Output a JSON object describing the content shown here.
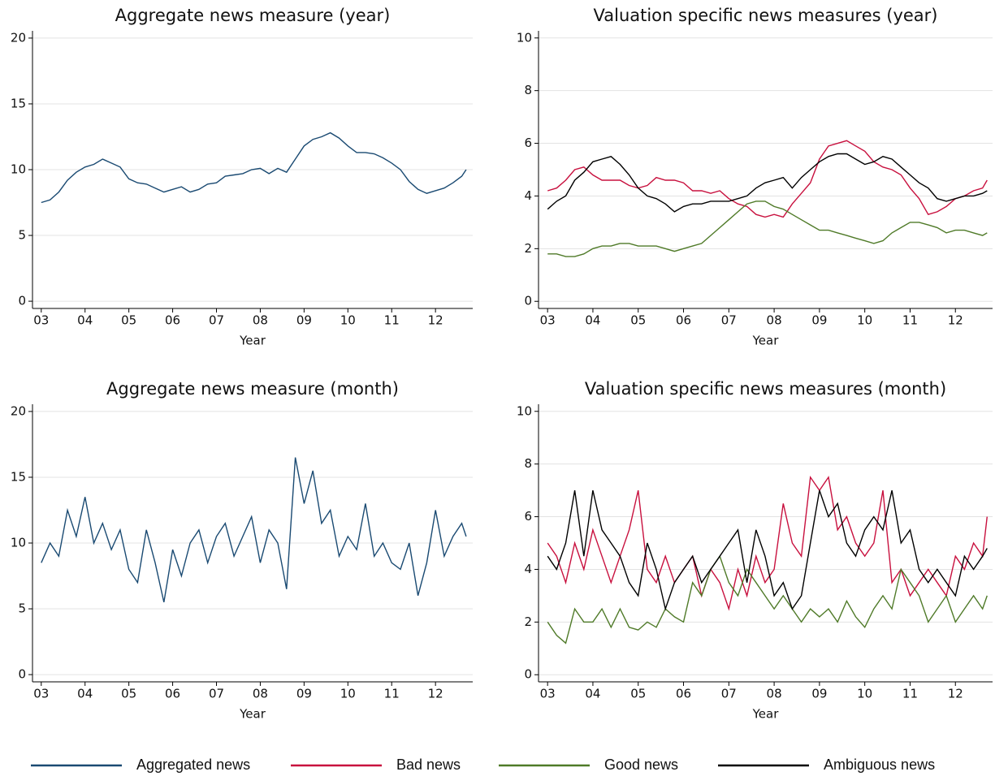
{
  "chart_data": [
    {
      "type": "line",
      "title": "Aggregate news measure (year)",
      "x_label": "Year",
      "x": [
        3.0,
        3.2,
        3.4,
        3.6,
        3.8,
        4.0,
        4.2,
        4.4,
        4.6,
        4.8,
        5.0,
        5.2,
        5.4,
        5.6,
        5.8,
        6.0,
        6.2,
        6.4,
        6.6,
        6.8,
        7.0,
        7.2,
        7.4,
        7.6,
        7.8,
        8.0,
        8.2,
        8.4,
        8.6,
        8.8,
        9.0,
        9.2,
        9.4,
        9.6,
        9.8,
        10.0,
        10.2,
        10.4,
        10.6,
        10.8,
        11.0,
        11.2,
        11.4,
        11.6,
        11.8,
        12.0,
        12.2,
        12.4,
        12.6,
        12.7
      ],
      "series": [
        {
          "name": "Aggregated news",
          "color": "#1a4a72",
          "values": [
            7.5,
            7.7,
            8.3,
            9.2,
            9.8,
            10.2,
            10.4,
            10.8,
            10.5,
            10.2,
            9.3,
            9.0,
            8.9,
            8.6,
            8.3,
            8.5,
            8.7,
            8.3,
            8.5,
            8.9,
            9.0,
            9.5,
            9.6,
            9.7,
            10.0,
            10.1,
            9.7,
            10.1,
            9.8,
            10.8,
            11.8,
            12.3,
            12.5,
            12.8,
            12.4,
            11.8,
            11.3,
            11.3,
            11.2,
            10.9,
            10.5,
            10.0,
            9.1,
            8.5,
            8.2,
            8.4,
            8.6,
            9.0,
            9.5,
            10.0
          ]
        }
      ],
      "xlim": [
        2.8,
        12.85
      ],
      "xticks": [
        {
          "value": 3,
          "label": "03"
        },
        {
          "value": 4,
          "label": "04"
        },
        {
          "value": 5,
          "label": "05"
        },
        {
          "value": 6,
          "label": "06"
        },
        {
          "value": 7,
          "label": "07"
        },
        {
          "value": 8,
          "label": "08"
        },
        {
          "value": 9,
          "label": "09"
        },
        10,
        11,
        12
      ],
      "ylim": [
        -0.55,
        20.55
      ],
      "yticks": [
        0,
        5,
        10,
        15,
        20
      ],
      "grid": true
    },
    {
      "type": "line",
      "title": "Valuation specific news measures (year)",
      "x_label": "Year",
      "x": [
        3.0,
        3.2,
        3.4,
        3.6,
        3.8,
        4.0,
        4.2,
        4.4,
        4.6,
        4.8,
        5.0,
        5.2,
        5.4,
        5.6,
        5.8,
        6.0,
        6.2,
        6.4,
        6.6,
        6.8,
        7.0,
        7.2,
        7.4,
        7.6,
        7.8,
        8.0,
        8.2,
        8.4,
        8.6,
        8.8,
        9.0,
        9.2,
        9.4,
        9.6,
        9.8,
        10.0,
        10.2,
        10.4,
        10.6,
        10.8,
        11.0,
        11.2,
        11.4,
        11.6,
        11.8,
        12.0,
        12.2,
        12.4,
        12.6,
        12.7
      ],
      "series": [
        {
          "name": "Bad news",
          "color": "#c8103e",
          "values": [
            4.2,
            4.3,
            4.6,
            5.0,
            5.1,
            4.8,
            4.6,
            4.6,
            4.6,
            4.4,
            4.3,
            4.4,
            4.7,
            4.6,
            4.6,
            4.5,
            4.2,
            4.2,
            4.1,
            4.2,
            3.9,
            3.7,
            3.6,
            3.3,
            3.2,
            3.3,
            3.2,
            3.7,
            4.1,
            4.5,
            5.4,
            5.9,
            6.0,
            6.1,
            5.9,
            5.7,
            5.3,
            5.1,
            5.0,
            4.8,
            4.3,
            3.9,
            3.3,
            3.4,
            3.6,
            3.9,
            4.0,
            4.2,
            4.3,
            4.6
          ]
        },
        {
          "name": "Good news",
          "color": "#4f7a28",
          "values": [
            1.8,
            1.8,
            1.7,
            1.7,
            1.8,
            2.0,
            2.1,
            2.1,
            2.2,
            2.2,
            2.1,
            2.1,
            2.1,
            2.0,
            1.9,
            2.0,
            2.1,
            2.2,
            2.5,
            2.8,
            3.1,
            3.4,
            3.7,
            3.8,
            3.8,
            3.6,
            3.5,
            3.3,
            3.1,
            2.9,
            2.7,
            2.7,
            2.6,
            2.5,
            2.4,
            2.3,
            2.2,
            2.3,
            2.6,
            2.8,
            3.0,
            3.0,
            2.9,
            2.8,
            2.6,
            2.7,
            2.7,
            2.6,
            2.5,
            2.6
          ]
        },
        {
          "name": "Ambiguous news",
          "color": "#000000",
          "values": [
            3.5,
            3.8,
            4.0,
            4.6,
            4.9,
            5.3,
            5.4,
            5.5,
            5.2,
            4.8,
            4.3,
            4.0,
            3.9,
            3.7,
            3.4,
            3.6,
            3.7,
            3.7,
            3.8,
            3.8,
            3.8,
            3.9,
            4.0,
            4.3,
            4.5,
            4.6,
            4.7,
            4.3,
            4.7,
            5.0,
            5.3,
            5.5,
            5.6,
            5.6,
            5.4,
            5.2,
            5.3,
            5.5,
            5.4,
            5.1,
            4.8,
            4.5,
            4.3,
            3.9,
            3.8,
            3.9,
            4.0,
            4.0,
            4.1,
            4.2
          ]
        }
      ],
      "xlim": [
        2.8,
        12.82
      ],
      "xticks": [
        {
          "value": 3,
          "label": "03"
        },
        {
          "value": 4,
          "label": "04"
        },
        {
          "value": 5,
          "label": "05"
        },
        {
          "value": 6,
          "label": "06"
        },
        {
          "value": 7,
          "label": "07"
        },
        {
          "value": 8,
          "label": "08"
        },
        {
          "value": 9,
          "label": "09"
        },
        10,
        11,
        12
      ],
      "ylim": [
        -0.27,
        10.27
      ],
      "yticks": [
        0,
        2,
        4,
        6,
        8,
        10
      ],
      "grid": true
    },
    {
      "type": "line",
      "title": "Aggregate news measure (month)",
      "x_label": "Year",
      "x": [
        3.0,
        3.2,
        3.4,
        3.6,
        3.8,
        4.0,
        4.2,
        4.4,
        4.6,
        4.8,
        5.0,
        5.2,
        5.4,
        5.6,
        5.8,
        6.0,
        6.2,
        6.4,
        6.6,
        6.8,
        7.0,
        7.2,
        7.4,
        7.6,
        7.8,
        8.0,
        8.2,
        8.4,
        8.6,
        8.8,
        9.0,
        9.2,
        9.4,
        9.6,
        9.8,
        10.0,
        10.2,
        10.4,
        10.6,
        10.8,
        11.0,
        11.2,
        11.4,
        11.6,
        11.8,
        12.0,
        12.2,
        12.4,
        12.6,
        12.7
      ],
      "series": [
        {
          "name": "Aggregated news",
          "color": "#1a4a72",
          "values": [
            8.5,
            10.0,
            9.0,
            12.5,
            10.5,
            13.5,
            10.0,
            11.5,
            9.5,
            11.0,
            8.0,
            7.0,
            11.0,
            8.5,
            5.5,
            9.5,
            7.5,
            10.0,
            11.0,
            8.5,
            10.5,
            11.5,
            9.0,
            10.5,
            12.0,
            8.5,
            11.0,
            10.0,
            6.5,
            16.5,
            13.0,
            15.5,
            11.5,
            12.5,
            9.0,
            10.5,
            9.5,
            13.0,
            9.0,
            10.0,
            8.5,
            8.0,
            10.0,
            6.0,
            8.5,
            12.5,
            9.0,
            10.5,
            11.5,
            10.5
          ]
        }
      ],
      "xlim": [
        2.8,
        12.85
      ],
      "xticks": [
        {
          "value": 3,
          "label": "03"
        },
        {
          "value": 4,
          "label": "04"
        },
        {
          "value": 5,
          "label": "05"
        },
        {
          "value": 6,
          "label": "06"
        },
        {
          "value": 7,
          "label": "07"
        },
        {
          "value": 8,
          "label": "08"
        },
        {
          "value": 9,
          "label": "09"
        },
        10,
        11,
        12
      ],
      "ylim": [
        -0.55,
        20.55
      ],
      "yticks": [
        0,
        5,
        10,
        15,
        20
      ],
      "grid": true
    },
    {
      "type": "line",
      "title": "Valuation specific news measures (month)",
      "x_label": "Year",
      "x": [
        3.0,
        3.2,
        3.4,
        3.6,
        3.8,
        4.0,
        4.2,
        4.4,
        4.6,
        4.8,
        5.0,
        5.2,
        5.4,
        5.6,
        5.8,
        6.0,
        6.2,
        6.4,
        6.6,
        6.8,
        7.0,
        7.2,
        7.4,
        7.6,
        7.8,
        8.0,
        8.2,
        8.4,
        8.6,
        8.8,
        9.0,
        9.2,
        9.4,
        9.6,
        9.8,
        10.0,
        10.2,
        10.4,
        10.6,
        10.8,
        11.0,
        11.2,
        11.4,
        11.6,
        11.8,
        12.0,
        12.2,
        12.4,
        12.6,
        12.7
      ],
      "series": [
        {
          "name": "Bad news",
          "color": "#c8103e",
          "values": [
            5.0,
            4.5,
            3.5,
            5.0,
            4.0,
            5.5,
            4.5,
            3.5,
            4.5,
            5.5,
            7.0,
            4.0,
            3.5,
            4.5,
            3.5,
            4.0,
            4.5,
            3.0,
            4.0,
            3.5,
            2.5,
            4.0,
            3.0,
            4.5,
            3.5,
            4.0,
            6.5,
            5.0,
            4.5,
            7.5,
            7.0,
            7.5,
            5.5,
            6.0,
            5.0,
            4.5,
            5.0,
            7.0,
            3.5,
            4.0,
            3.0,
            3.5,
            4.0,
            3.5,
            3.0,
            4.5,
            4.0,
            5.0,
            4.5,
            6.0
          ]
        },
        {
          "name": "Good news",
          "color": "#4f7a28",
          "values": [
            2.0,
            1.5,
            1.2,
            2.5,
            2.0,
            2.0,
            2.5,
            1.8,
            2.5,
            1.8,
            1.7,
            2.0,
            1.8,
            2.5,
            2.2,
            2.0,
            3.5,
            3.0,
            4.0,
            4.5,
            3.5,
            3.0,
            4.0,
            3.5,
            3.0,
            2.5,
            3.0,
            2.5,
            2.0,
            2.5,
            2.2,
            2.5,
            2.0,
            2.8,
            2.2,
            1.8,
            2.5,
            3.0,
            2.5,
            4.0,
            3.5,
            3.0,
            2.0,
            2.5,
            3.0,
            2.0,
            2.5,
            3.0,
            2.5,
            3.0
          ]
        },
        {
          "name": "Ambiguous news",
          "color": "#000000",
          "values": [
            4.5,
            4.0,
            5.0,
            7.0,
            4.5,
            7.0,
            5.5,
            5.0,
            4.5,
            3.5,
            3.0,
            5.0,
            4.0,
            2.5,
            3.5,
            4.0,
            4.5,
            3.5,
            4.0,
            4.5,
            5.0,
            5.5,
            3.5,
            5.5,
            4.5,
            3.0,
            3.5,
            2.5,
            3.0,
            5.0,
            7.0,
            6.0,
            6.5,
            5.0,
            4.5,
            5.5,
            6.0,
            5.5,
            7.0,
            5.0,
            5.5,
            4.0,
            3.5,
            4.0,
            3.5,
            3.0,
            4.5,
            4.0,
            4.5,
            4.8
          ]
        }
      ],
      "xlim": [
        2.8,
        12.82
      ],
      "xticks": [
        {
          "value": 3,
          "label": "03"
        },
        {
          "value": 4,
          "label": "04"
        },
        {
          "value": 5,
          "label": "05"
        },
        {
          "value": 6,
          "label": "06"
        },
        {
          "value": 7,
          "label": "07"
        },
        {
          "value": 8,
          "label": "08"
        },
        {
          "value": 9,
          "label": "09"
        },
        10,
        11,
        12
      ],
      "ylim": [
        -0.27,
        10.27
      ],
      "yticks": [
        0,
        2,
        4,
        6,
        8,
        10
      ],
      "grid": true
    }
  ],
  "legend": {
    "position": "bottom"
  }
}
